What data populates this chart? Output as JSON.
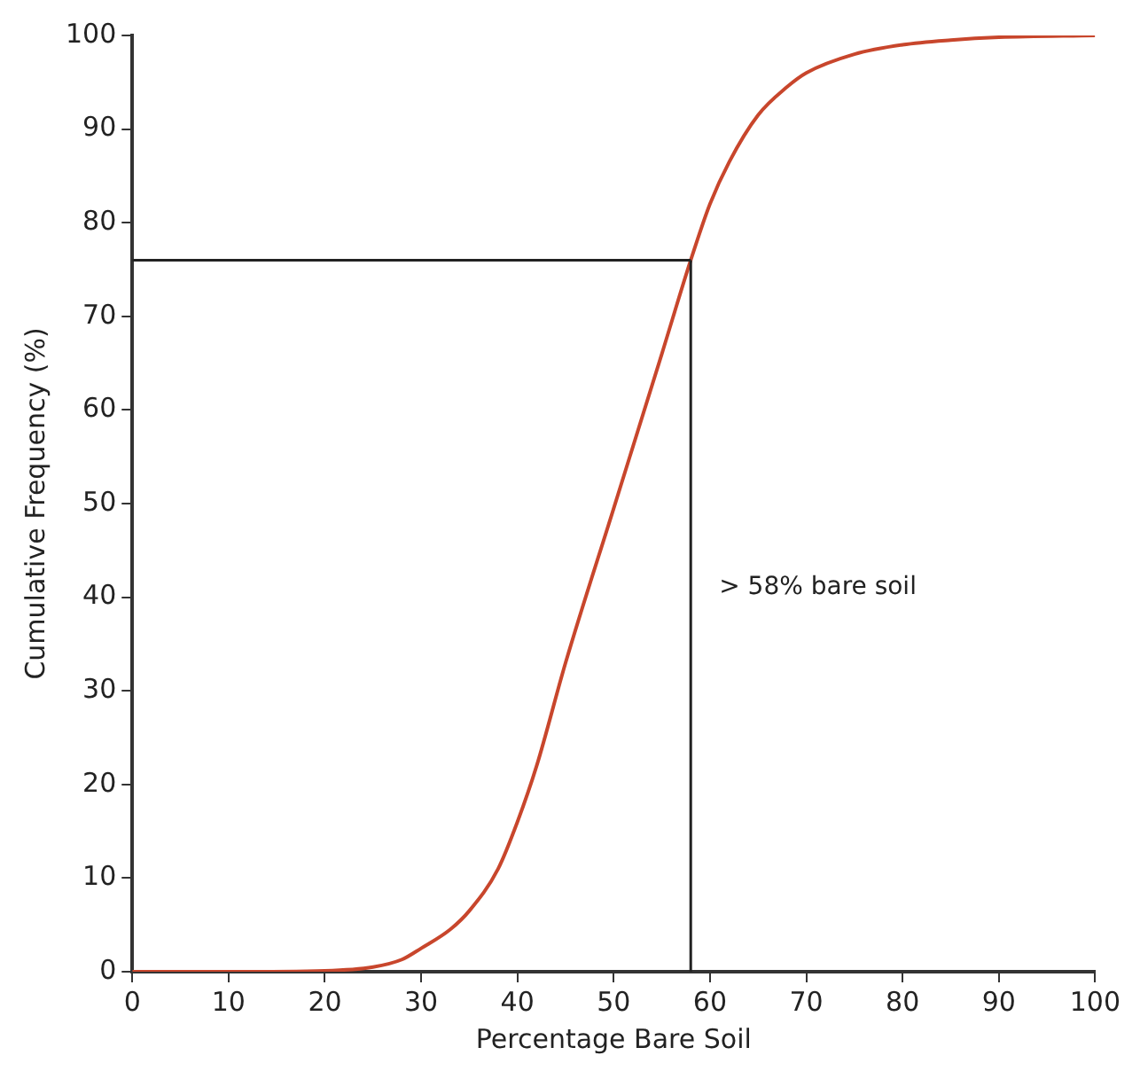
{
  "chart_data": {
    "type": "line",
    "xlabel": "Percentage Bare Soil",
    "ylabel": "Cumulative Frequency (%)",
    "x": [
      0,
      10,
      20,
      25,
      28,
      30,
      33,
      35,
      38,
      40,
      42,
      45,
      50,
      55,
      58,
      60,
      62,
      65,
      68,
      70,
      75,
      80,
      85,
      90,
      100
    ],
    "series": [
      {
        "color": "#c8462c",
        "values": [
          0,
          0,
          0.1,
          0.5,
          1.3,
          2.5,
          4.5,
          6.5,
          11,
          16,
          22,
          33,
          49.5,
          66,
          76,
          82,
          86.5,
          91.5,
          94.5,
          96,
          98,
          99,
          99.5,
          99.8,
          100
        ]
      }
    ],
    "xlim": [
      0,
      100
    ],
    "xticks": [
      0,
      10,
      20,
      30,
      40,
      50,
      60,
      70,
      80,
      90,
      100
    ],
    "ylim": [
      0,
      100
    ],
    "yticks": [
      0,
      10,
      20,
      30,
      40,
      50,
      60,
      70,
      80,
      90,
      100
    ],
    "ref_lines": [
      {
        "axis": "x",
        "value": 58,
        "color": "#222222"
      },
      {
        "axis": "y",
        "value": 76,
        "color": "#222222"
      }
    ],
    "annotations": [
      "> 58% bare soil"
    ],
    "grid": false,
    "legend": false,
    "marker": "none",
    "line_style": "solid"
  }
}
